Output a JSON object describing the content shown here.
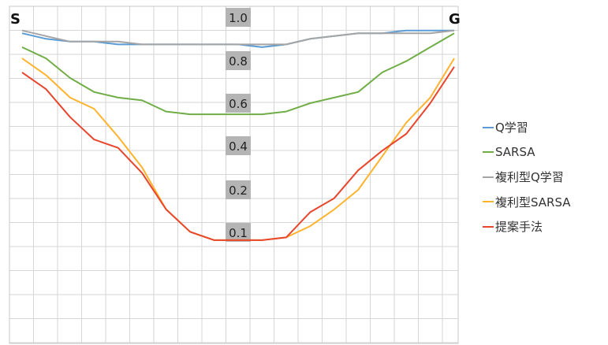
{
  "chart_data": {
    "type": "line",
    "title": "",
    "xlabel": "",
    "ylabel": "",
    "x": [
      1,
      2,
      3,
      4,
      5,
      6,
      7,
      8,
      9,
      10,
      11,
      12,
      13,
      14,
      15,
      16,
      17,
      18,
      19
    ],
    "ylim": [
      0,
      1.0
    ],
    "grid": true,
    "legend_position": "right",
    "scale_labels": [
      "1.0",
      "0.8",
      "0.6",
      "0.4",
      "0.2",
      "0.1"
    ],
    "endpoint_labels": {
      "start": "S",
      "goal": "G"
    },
    "series": [
      {
        "name": "Q学習",
        "color": "#5b9bd5",
        "values": [
          0.96,
          0.94,
          0.93,
          0.93,
          0.92,
          0.92,
          0.92,
          0.92,
          0.92,
          0.92,
          0.91,
          0.92,
          0.94,
          0.95,
          0.96,
          0.96,
          0.97,
          0.97,
          0.97
        ]
      },
      {
        "name": "SARSA",
        "color": "#70ad47",
        "values": [
          0.91,
          0.87,
          0.8,
          0.75,
          0.73,
          0.72,
          0.68,
          0.67,
          0.67,
          0.67,
          0.67,
          0.68,
          0.71,
          0.73,
          0.75,
          0.82,
          0.86,
          0.91,
          0.96
        ]
      },
      {
        "name": "複利型Q学習",
        "color": "#a5a5a5",
        "values": [
          0.97,
          0.95,
          0.93,
          0.93,
          0.93,
          0.92,
          0.92,
          0.92,
          0.92,
          0.92,
          0.92,
          0.92,
          0.94,
          0.95,
          0.96,
          0.96,
          0.96,
          0.96,
          0.97
        ]
      },
      {
        "name": "複利型SARSA",
        "color": "#ffb32e",
        "values": [
          0.87,
          0.81,
          0.73,
          0.69,
          0.59,
          0.48,
          0.33,
          0.25,
          0.22,
          0.22,
          0.22,
          0.23,
          0.27,
          0.33,
          0.4,
          0.52,
          0.64,
          0.73,
          0.87
        ]
      },
      {
        "name": "提案手法",
        "color": "#e8462c",
        "values": [
          0.82,
          0.76,
          0.66,
          0.58,
          0.55,
          0.46,
          0.33,
          0.25,
          0.22,
          0.22,
          0.22,
          0.23,
          0.32,
          0.37,
          0.47,
          0.54,
          0.6,
          0.71,
          0.84
        ]
      }
    ]
  }
}
